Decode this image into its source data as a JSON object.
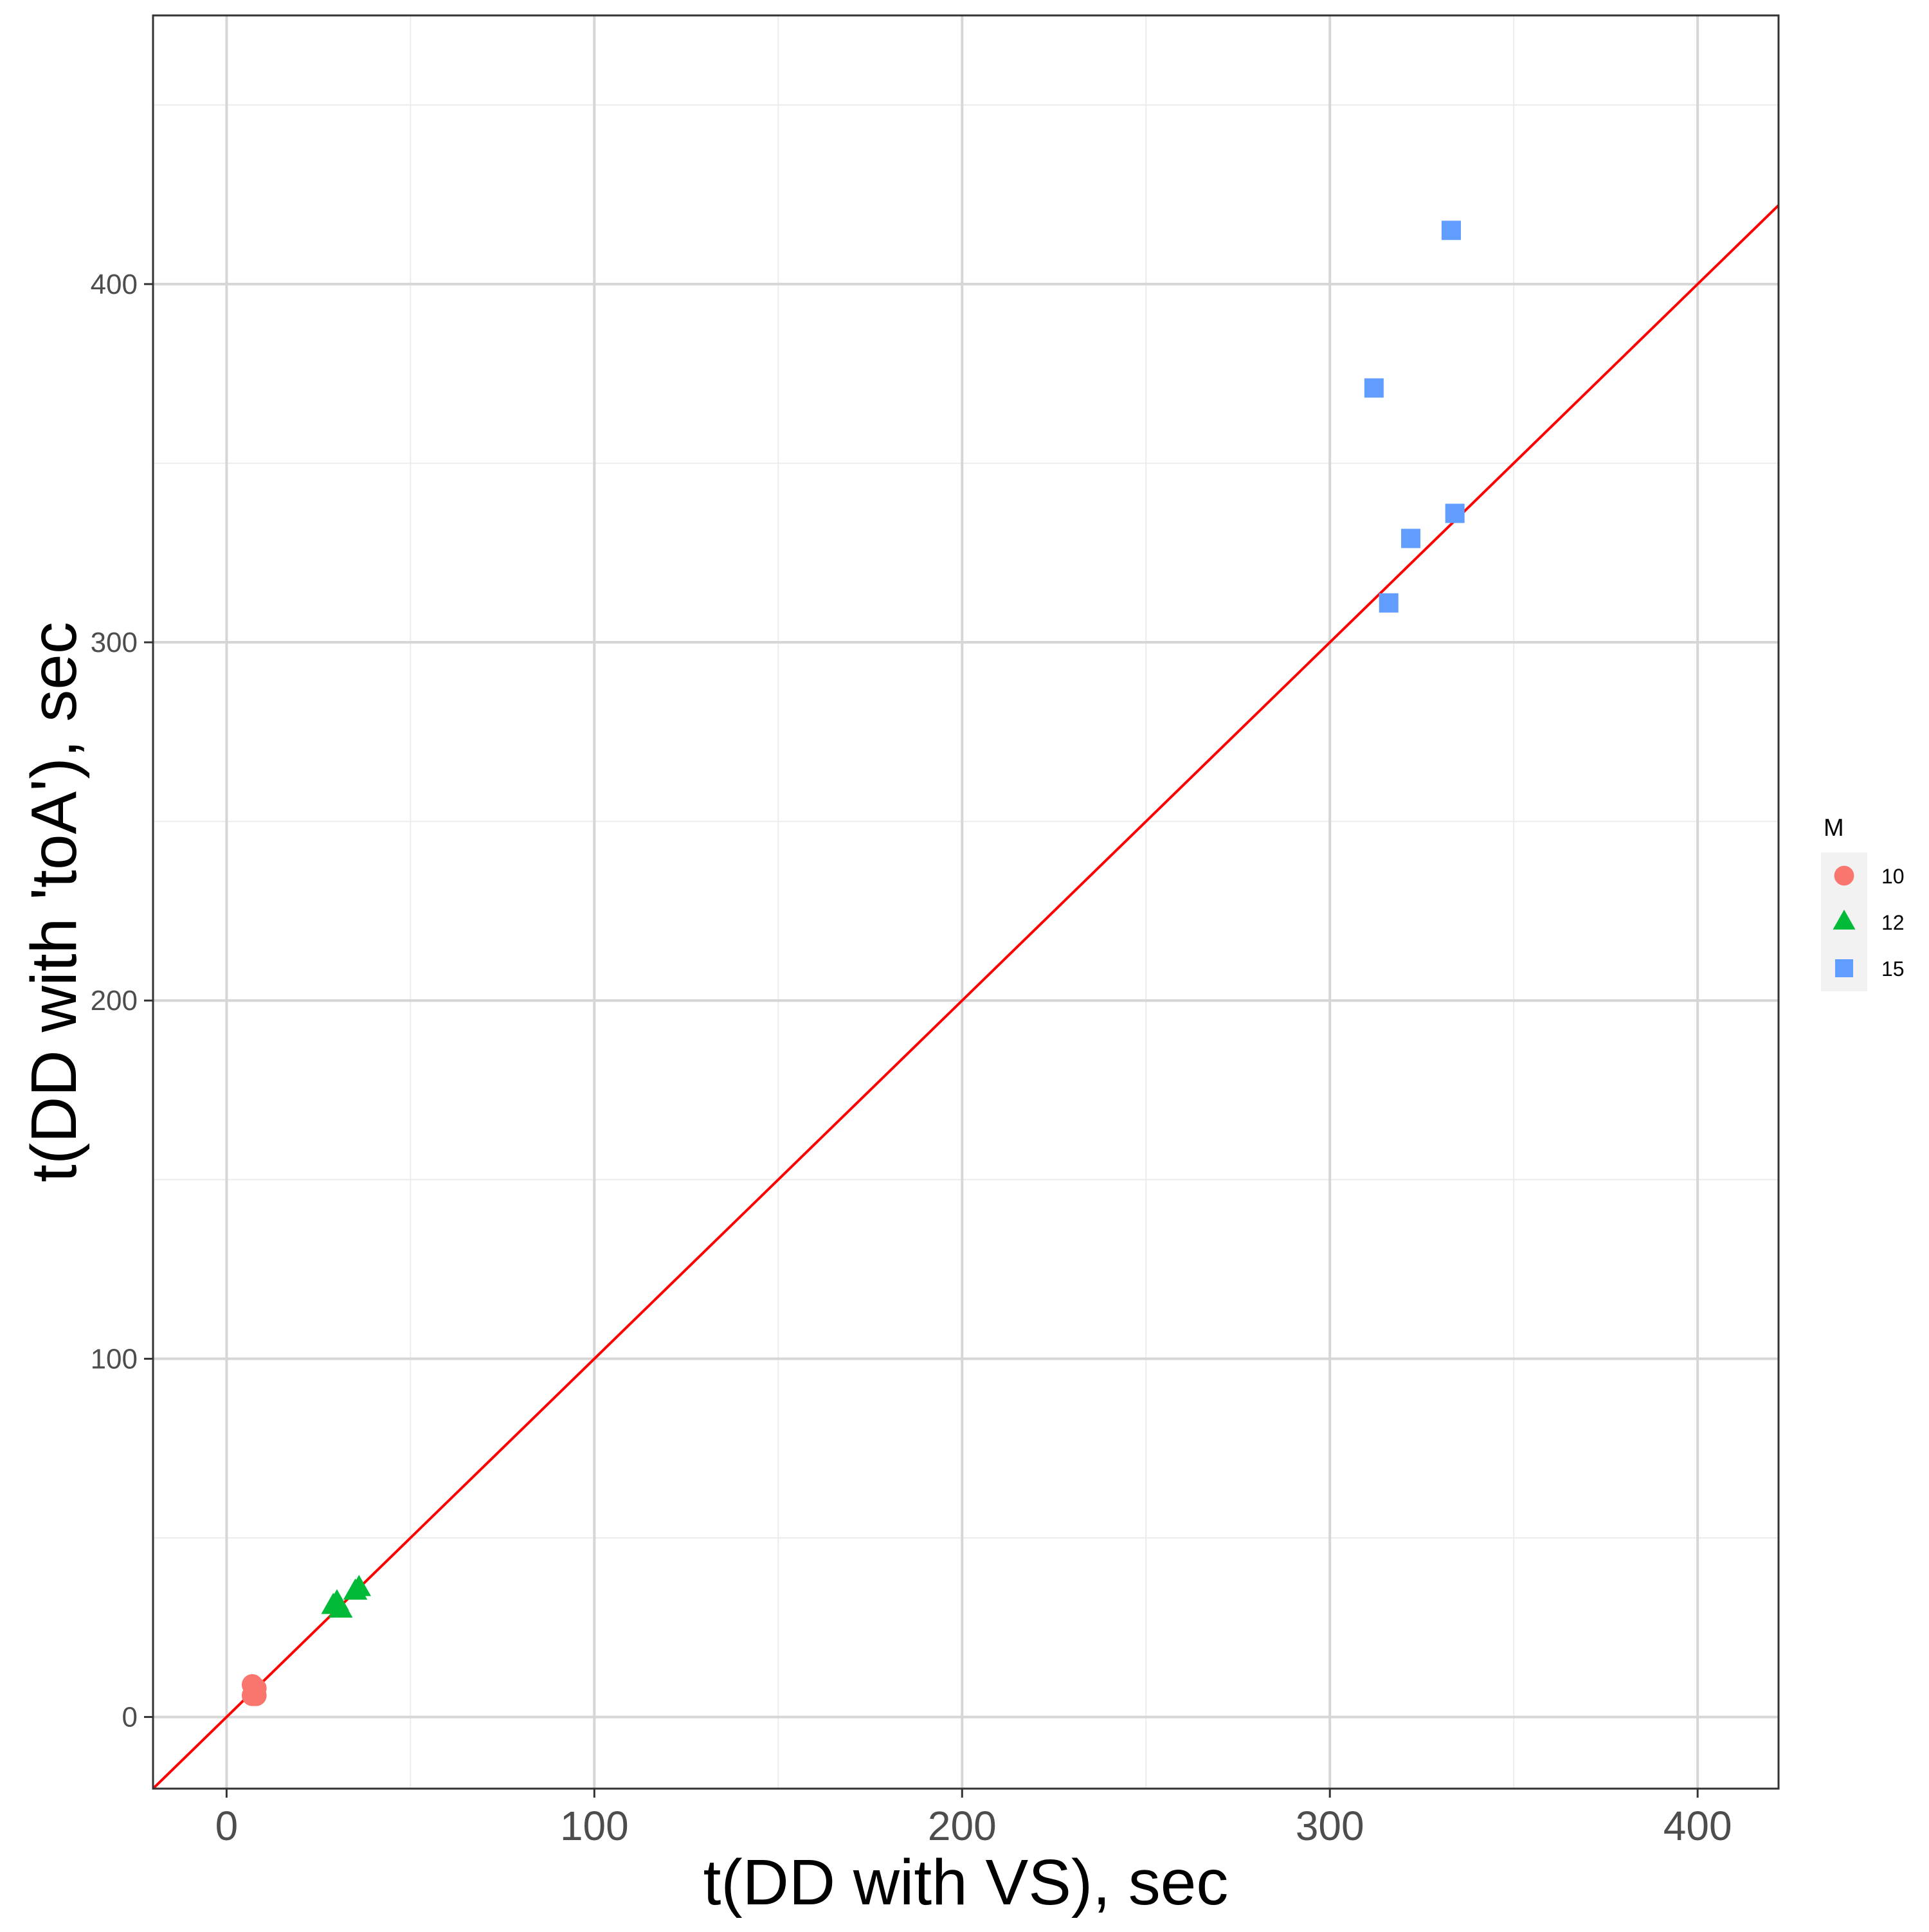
{
  "chart_data": {
    "type": "scatter",
    "xlabel": "t(DD with VS), sec",
    "ylabel": "t(DD with 'toA'), sec",
    "xlim": [
      -20,
      422
    ],
    "ylim": [
      -20,
      475
    ],
    "x_ticks": [
      0,
      100,
      200,
      300,
      400
    ],
    "y_ticks": [
      0,
      100,
      200,
      300,
      400
    ],
    "grid": true,
    "legend": {
      "title": "M",
      "position": "right",
      "entries": [
        "10",
        "12",
        "15"
      ]
    },
    "series": [
      {
        "name": "10",
        "shape": "circle",
        "color": "#F8766D",
        "points": [
          [
            7,
            6
          ],
          [
            7.5,
            7
          ],
          [
            8,
            8
          ],
          [
            7,
            9
          ],
          [
            8,
            6
          ]
        ]
      },
      {
        "name": "12",
        "shape": "triangle",
        "color": "#00BA38",
        "points": [
          [
            29,
            31
          ],
          [
            31,
            30
          ],
          [
            30,
            32
          ],
          [
            35,
            35
          ],
          [
            36,
            36
          ]
        ]
      },
      {
        "name": "15",
        "shape": "square",
        "color": "#619CFF",
        "points": [
          [
            312,
            371
          ],
          [
            316,
            311
          ],
          [
            322,
            329
          ],
          [
            333,
            415
          ],
          [
            334,
            336
          ]
        ]
      }
    ],
    "reference_line": {
      "type": "identity",
      "slope": 1,
      "intercept": 0,
      "color": "#FF0000"
    }
  }
}
